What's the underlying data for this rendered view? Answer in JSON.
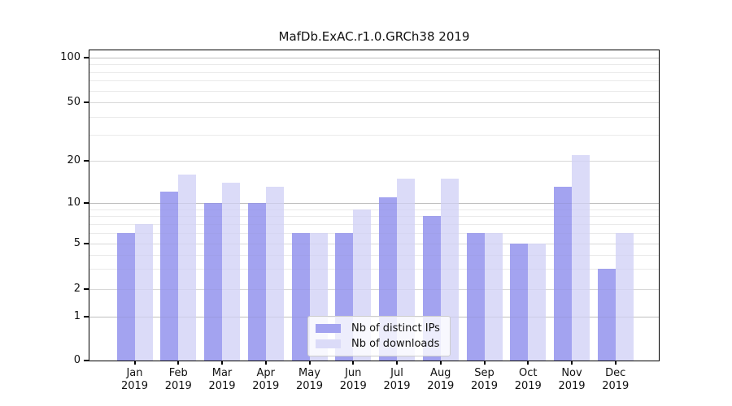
{
  "title": "MafDb.ExAC.r1.0.GRCh38 2019",
  "chart_data": {
    "type": "bar",
    "title": "MafDb.ExAC.r1.0.GRCh38 2019",
    "year": "2019",
    "months": [
      "Jan",
      "Feb",
      "Mar",
      "Apr",
      "May",
      "Jun",
      "Jul",
      "Aug",
      "Sep",
      "Oct",
      "Nov",
      "Dec"
    ],
    "categories": [
      "Jan 2019",
      "Feb 2019",
      "Mar 2019",
      "Apr 2019",
      "May 2019",
      "Jun 2019",
      "Jul 2019",
      "Aug 2019",
      "Sep 2019",
      "Oct 2019",
      "Nov 2019",
      "Dec 2019"
    ],
    "series": [
      {
        "name": "Nb of distinct IPs",
        "color": "#a3a3f0",
        "values": [
          6,
          12,
          10,
          10,
          6,
          6,
          11,
          8,
          6,
          5,
          13,
          3
        ]
      },
      {
        "name": "Nb of downloads",
        "color": "#dbdbf8",
        "values": [
          7,
          16,
          14,
          13,
          6,
          9,
          15,
          15,
          6,
          5,
          22,
          6
        ]
      }
    ],
    "xlabel": "",
    "ylabel": "",
    "yscale": "log-like (linear below 1)",
    "yticks": [
      100,
      50,
      20,
      10,
      5,
      2,
      1,
      0
    ],
    "minor_yticks": [
      90,
      80,
      70,
      60,
      40,
      30,
      9,
      8,
      7,
      6,
      4,
      3
    ],
    "ylim": [
      0,
      112
    ],
    "grid": true,
    "legend_position": "lower center"
  },
  "colors": {
    "background": "#ffffff",
    "axis": "#000000",
    "grid_major_power10": "#cccccc",
    "grid_major_other": "#e0e0e0",
    "grid_minor": "#f0f0f0",
    "bar_dark": "#a3a3f0",
    "bar_light": "#dbdbf8",
    "legend_border": "#cccccc"
  }
}
